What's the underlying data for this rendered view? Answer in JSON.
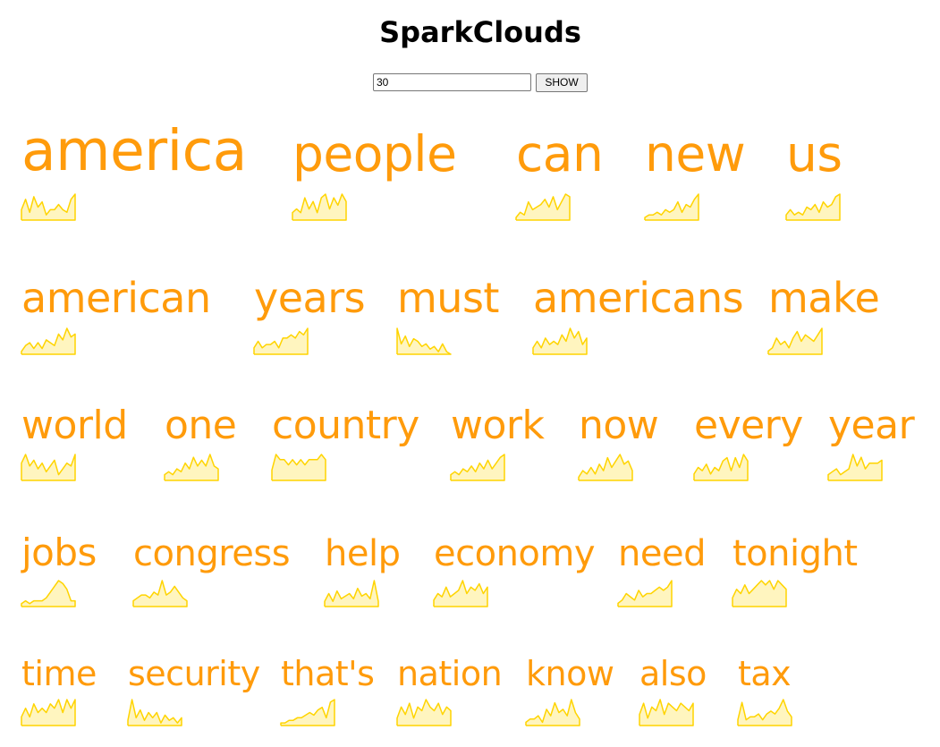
{
  "header": {
    "title": "SparkClouds"
  },
  "controls": {
    "count_value": "30",
    "show_label": "SHOW"
  },
  "colors": {
    "word": "#ff9b0b",
    "spark_stroke": "#ffd400",
    "spark_fill": "#fff5bf"
  },
  "words": [
    {
      "text": "america",
      "size": 63,
      "trend": [
        4,
        8,
        3,
        9,
        5,
        7,
        2,
        4,
        4,
        6,
        4,
        3,
        8,
        10
      ]
    },
    {
      "text": "people",
      "size": 55,
      "trend": [
        2,
        3,
        2,
        6,
        3,
        5,
        2,
        6,
        7,
        3,
        6,
        4,
        7,
        5
      ]
    },
    {
      "text": "can",
      "size": 55,
      "trend": [
        1,
        3,
        2,
        7,
        4,
        5,
        6,
        8,
        5,
        9,
        4,
        7,
        10,
        9
      ]
    },
    {
      "text": "new",
      "size": 55,
      "trend": [
        1,
        2,
        2,
        3,
        2,
        4,
        3,
        4,
        7,
        3,
        6,
        5,
        8,
        10
      ]
    },
    {
      "text": "us",
      "size": 55,
      "trend": [
        2,
        4,
        2,
        3,
        2,
        5,
        4,
        6,
        3,
        7,
        5,
        6,
        9,
        10
      ]
    },
    {
      "text": "american",
      "size": 46,
      "trend": [
        1,
        3,
        4,
        2,
        4,
        2,
        5,
        4,
        3,
        7,
        5,
        9,
        6,
        7
      ]
    },
    {
      "text": "years",
      "size": 46,
      "trend": [
        2,
        4,
        2,
        3,
        3,
        4,
        2,
        5,
        5,
        6,
        5,
        7,
        6,
        8
      ]
    },
    {
      "text": "must",
      "size": 46,
      "trend": [
        10,
        4,
        7,
        3,
        6,
        5,
        3,
        4,
        2,
        3,
        1,
        4,
        1,
        0
      ]
    },
    {
      "text": "americans",
      "size": 46,
      "trend": [
        2,
        4,
        2,
        5,
        3,
        4,
        3,
        6,
        4,
        8,
        5,
        7,
        3,
        5
      ]
    },
    {
      "text": "make",
      "size": 46,
      "trend": [
        1,
        2,
        5,
        3,
        4,
        2,
        5,
        7,
        4,
        6,
        5,
        4,
        6,
        8
      ]
    },
    {
      "text": "world",
      "size": 44,
      "trend": [
        6,
        9,
        5,
        7,
        4,
        6,
        3,
        5,
        7,
        2,
        4,
        6,
        5,
        9
      ]
    },
    {
      "text": "one",
      "size": 44,
      "trend": [
        2,
        3,
        2,
        4,
        3,
        6,
        4,
        8,
        5,
        7,
        5,
        9,
        5,
        4
      ]
    },
    {
      "text": "country",
      "size": 44,
      "trend": [
        2,
        5,
        4,
        4,
        3,
        4,
        3,
        4,
        3,
        4,
        4,
        4,
        5,
        4
      ]
    },
    {
      "text": "work",
      "size": 44,
      "trend": [
        2,
        3,
        2,
        4,
        3,
        5,
        3,
        6,
        4,
        7,
        4,
        6,
        8,
        9
      ]
    },
    {
      "text": "now",
      "size": 44,
      "trend": [
        1,
        3,
        2,
        4,
        2,
        5,
        3,
        7,
        4,
        6,
        8,
        5,
        6,
        3
      ]
    },
    {
      "text": "every",
      "size": 44,
      "trend": [
        2,
        4,
        3,
        5,
        2,
        4,
        3,
        6,
        7,
        3,
        7,
        4,
        8,
        6
      ]
    },
    {
      "text": "year",
      "size": 44,
      "trend": [
        2,
        3,
        4,
        2,
        3,
        4,
        9,
        5,
        8,
        4,
        6,
        6,
        6,
        7
      ]
    },
    {
      "text": "jobs",
      "size": 42,
      "trend": [
        1,
        2,
        1,
        2,
        2,
        2,
        3,
        5,
        7,
        9,
        8,
        6,
        2,
        2
      ]
    },
    {
      "text": "congress",
      "size": 40,
      "trend": [
        2,
        3,
        4,
        4,
        3,
        5,
        4,
        9,
        4,
        5,
        7,
        5,
        3,
        2
      ]
    },
    {
      "text": "help",
      "size": 40,
      "trend": [
        2,
        5,
        2,
        6,
        3,
        4,
        5,
        3,
        7,
        4,
        5,
        3,
        10,
        2
      ]
    },
    {
      "text": "economy",
      "size": 40,
      "trend": [
        2,
        4,
        3,
        6,
        3,
        4,
        5,
        8,
        4,
        6,
        5,
        7,
        4,
        6
      ]
    },
    {
      "text": "need",
      "size": 40,
      "trend": [
        1,
        2,
        4,
        3,
        2,
        5,
        3,
        4,
        4,
        5,
        6,
        5,
        6,
        8
      ]
    },
    {
      "text": "tonight",
      "size": 40,
      "trend": [
        2,
        4,
        3,
        5,
        3,
        4,
        5,
        6,
        5,
        6,
        4,
        6,
        5,
        4
      ]
    },
    {
      "text": "time",
      "size": 38,
      "trend": [
        2,
        4,
        2,
        5,
        3,
        4,
        3,
        5,
        4,
        6,
        3,
        6,
        4,
        6
      ]
    },
    {
      "text": "security",
      "size": 38,
      "trend": [
        2,
        10,
        3,
        6,
        2,
        5,
        3,
        5,
        1,
        4,
        2,
        3,
        1,
        3
      ]
    },
    {
      "text": "that's",
      "size": 38,
      "trend": [
        1,
        1,
        2,
        2,
        3,
        3,
        4,
        5,
        4,
        6,
        7,
        3,
        9,
        10
      ]
    },
    {
      "text": "nation",
      "size": 38,
      "trend": [
        2,
        5,
        3,
        6,
        2,
        5,
        4,
        7,
        5,
        4,
        6,
        3,
        5,
        4
      ]
    },
    {
      "text": "know",
      "size": 38,
      "trend": [
        1,
        2,
        2,
        3,
        1,
        5,
        3,
        7,
        4,
        5,
        3,
        8,
        4,
        2
      ]
    },
    {
      "text": "also",
      "size": 38,
      "trend": [
        3,
        6,
        2,
        5,
        4,
        7,
        3,
        6,
        5,
        4,
        6,
        5,
        4,
        6
      ]
    },
    {
      "text": "tax",
      "size": 38,
      "trend": [
        2,
        8,
        2,
        3,
        3,
        4,
        2,
        4,
        5,
        4,
        6,
        9,
        5,
        3
      ]
    }
  ]
}
